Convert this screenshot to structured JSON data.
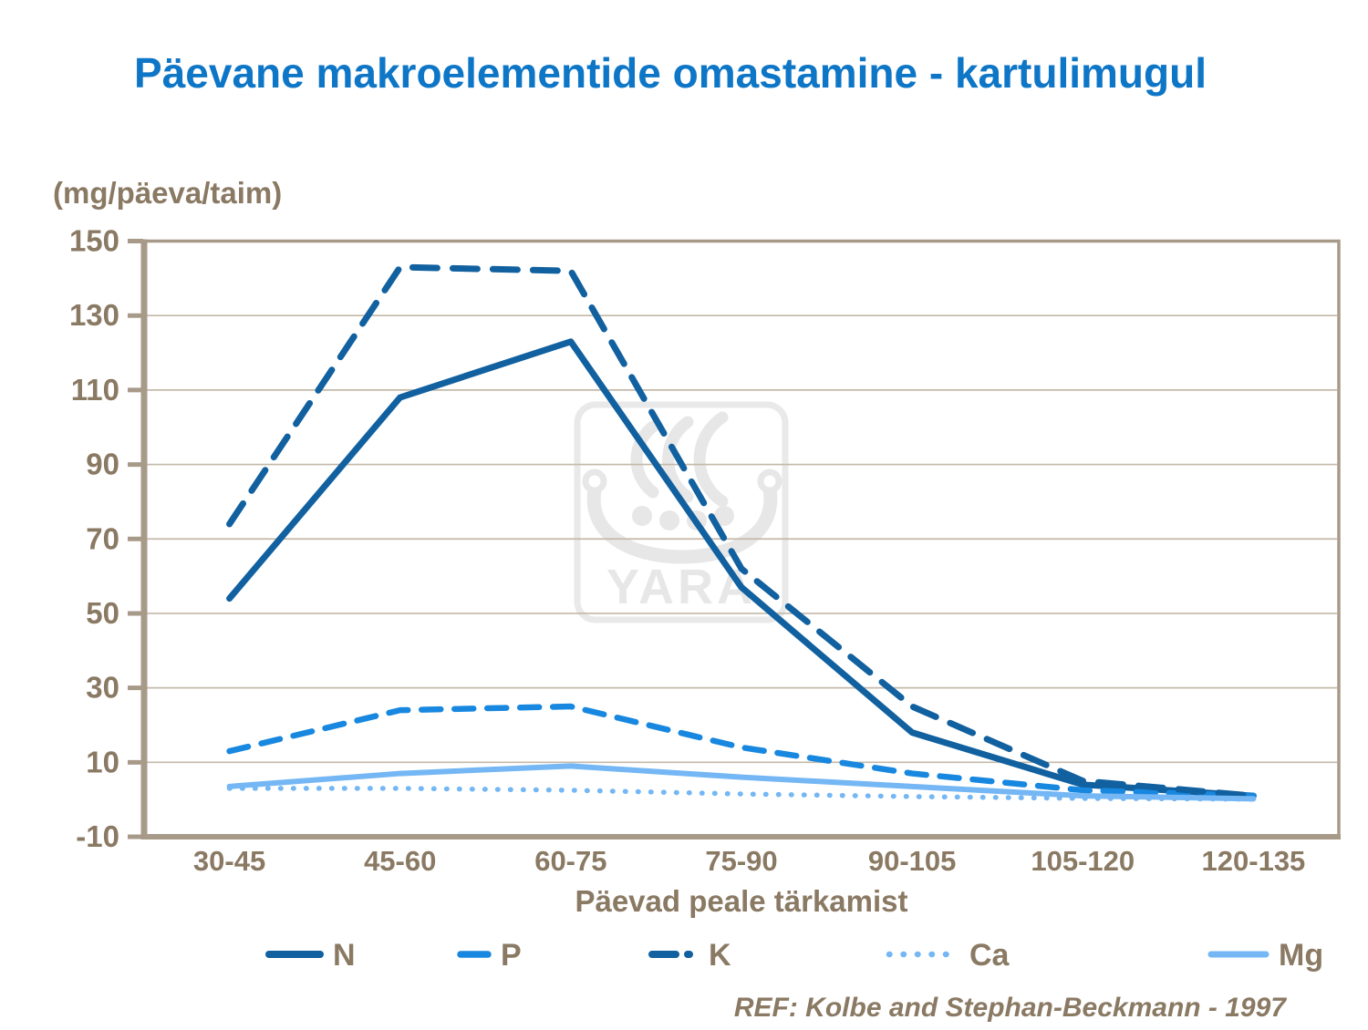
{
  "title": "Päevane makroelementide omastamine - kartulimugul",
  "unit_label": "(mg/päeva/taim)",
  "ref_text": "REF: Kolbe and Stephan-Beckmann - 1997",
  "watermark": "YARA",
  "colors": {
    "title_blue": "#0E76C6",
    "dark_blue": "#11609F",
    "mid_blue": "#1787DF",
    "light_blue": "#74B7F4",
    "text_brown": "#8A7963",
    "gridline": "#C4B9A9",
    "axis": "#A79A89",
    "watermark_gray": "#E7E7E7"
  },
  "chart_data": {
    "type": "line",
    "title": "Päevane makroelementide omastamine - kartulimugul",
    "xlabel": "Päevad peale tärkamist",
    "ylabel": "(mg/päeva/taim)",
    "ylim": [
      -10,
      150
    ],
    "yticks": [
      150,
      130,
      110,
      90,
      70,
      50,
      30,
      10,
      -10
    ],
    "grid": "horizontal",
    "legend_position": "bottom",
    "categories": [
      "30-45",
      "45-60",
      "60-75",
      "75-90",
      "90-105",
      "105-120",
      "120-135"
    ],
    "series": [
      {
        "name": "N",
        "style": "solid",
        "color": "#11609F",
        "width": 7,
        "values": [
          54,
          108,
          123,
          57,
          18,
          4,
          1
        ]
      },
      {
        "name": "P",
        "style": "dashed",
        "color": "#1787DF",
        "width": 6.5,
        "values": [
          13,
          24,
          25,
          14,
          7,
          2.5,
          1
        ]
      },
      {
        "name": "K",
        "style": "dashed",
        "color": "#11609F",
        "width": 7,
        "values": [
          74,
          143,
          142,
          62,
          25,
          5,
          1
        ]
      },
      {
        "name": "Ca",
        "style": "dotted",
        "color": "#74B7F4",
        "width": 5.5,
        "values": [
          3,
          3,
          2.5,
          1.5,
          0.8,
          0.3,
          0.1
        ]
      },
      {
        "name": "Mg",
        "style": "solid",
        "color": "#74B7F4",
        "width": 6,
        "values": [
          3.5,
          7,
          9,
          6,
          3.5,
          1,
          0.2
        ]
      }
    ]
  }
}
